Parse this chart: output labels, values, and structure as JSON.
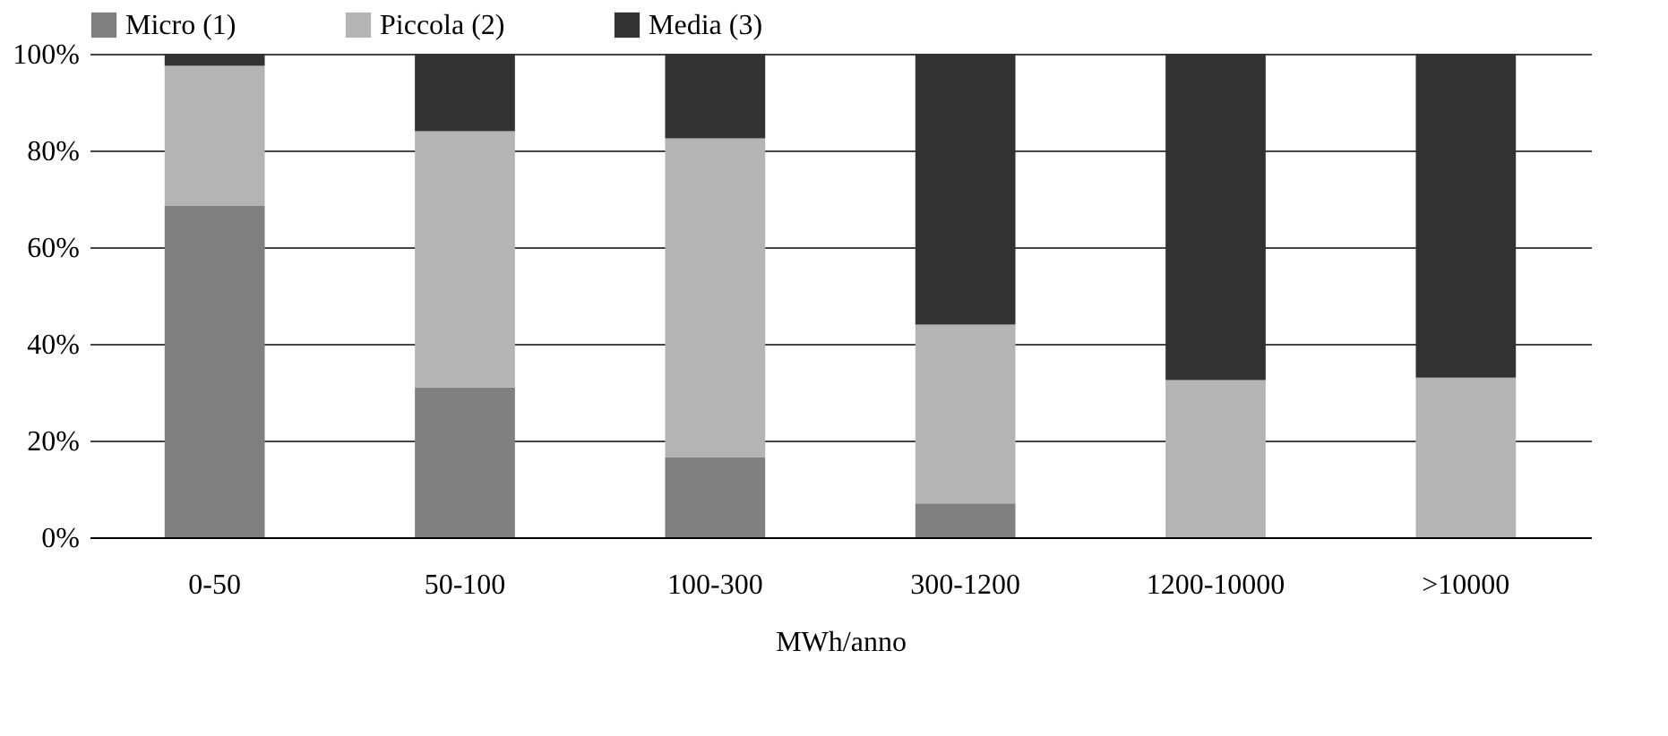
{
  "chart_data": {
    "type": "bar",
    "stacked": true,
    "xlabel": "MWh/anno",
    "categories": [
      "0-50",
      "50-100",
      "100-300",
      "300-1200",
      "1200-10000",
      ">10000"
    ],
    "series": [
      {
        "name": "Micro (1)",
        "color": "#808080",
        "values": [
          68.5,
          31,
          16.5,
          7,
          0,
          0
        ]
      },
      {
        "name": "Piccola (2)",
        "color": "#b4b4b4",
        "values": [
          29,
          53,
          66,
          37,
          32.5,
          33
        ]
      },
      {
        "name": "Media (3)",
        "color": "#333333",
        "values": [
          2.5,
          16,
          17.5,
          56,
          67.5,
          67
        ]
      }
    ],
    "ylim": [
      0,
      100
    ],
    "yticks": [
      {
        "value": 0,
        "label": "0%"
      },
      {
        "value": 20,
        "label": "20%"
      },
      {
        "value": 40,
        "label": "40%"
      },
      {
        "value": 60,
        "label": "60%"
      },
      {
        "value": 80,
        "label": "80%"
      },
      {
        "value": 100,
        "label": "100%"
      }
    ],
    "grid": "y",
    "legend": "top"
  }
}
